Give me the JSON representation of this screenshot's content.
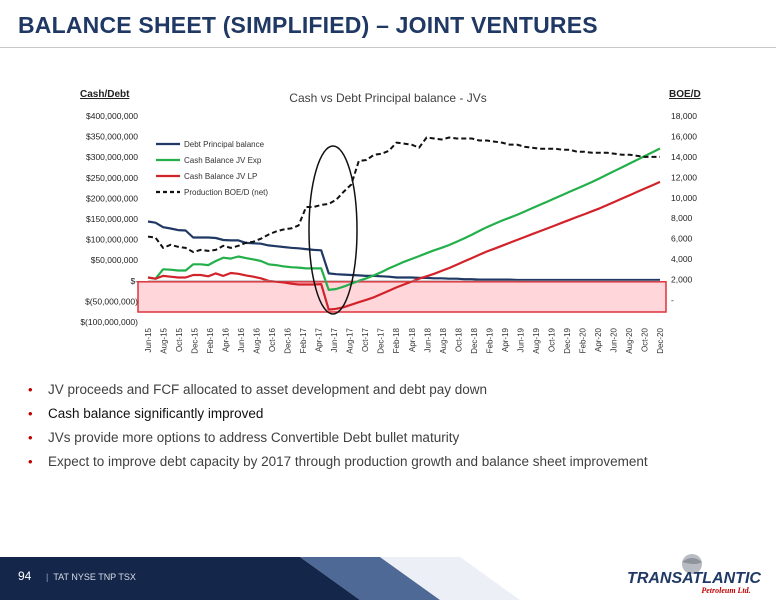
{
  "header": {
    "title": "BALANCE SHEET (SIMPLIFIED) – JOINT VENTURES"
  },
  "chart_data": {
    "type": "line",
    "title": "Cash vs Debt Principal balance - JVs",
    "ylabel": "Cash/Debt",
    "y2label": "BOE/D",
    "ylim": [
      -100000000,
      400000000
    ],
    "y2lim": [
      0,
      18000
    ],
    "y_ticks": [
      "$400,000,000",
      "$350,000,000",
      "$300,000,000",
      "$250,000,000",
      "$200,000,000",
      "$150,000,000",
      "$100,000,000",
      "$50,000,000",
      "$-",
      "$(50,000,000)",
      "$(100,000,000)"
    ],
    "y2_ticks": [
      "18,000",
      "16,000",
      "14,000",
      "12,000",
      "10,000",
      "8,000",
      "6,000",
      "4,000",
      "2,000",
      "-"
    ],
    "x_labels": [
      "Jun-15",
      "Aug-15",
      "Oct-15",
      "Dec-15",
      "Feb-16",
      "Apr-16",
      "Jun-16",
      "Aug-16",
      "Oct-16",
      "Dec-16",
      "Feb-17",
      "Apr-17",
      "Jun-17",
      "Aug-17",
      "Oct-17",
      "Dec-17",
      "Feb-18",
      "Apr-18",
      "Jun-18",
      "Aug-18",
      "Oct-18",
      "Dec-18",
      "Feb-19",
      "Apr-19",
      "Jun-19",
      "Aug-19",
      "Oct-19",
      "Dec-19",
      "Feb-20",
      "Apr-20",
      "Jun-20",
      "Aug-20",
      "Oct-20",
      "Dec-20"
    ],
    "grid": false,
    "legend_position": "top-left",
    "series": [
      {
        "name": "Debt Principal balance",
        "axis": "left",
        "color": "#1f3864",
        "style": "solid",
        "values": [
          144,
          141,
          130,
          127,
          123,
          122,
          105,
          105,
          105,
          104,
          99,
          98,
          98,
          92,
          91,
          90,
          86,
          84,
          82,
          80,
          79,
          77,
          75,
          74,
          18,
          16,
          15,
          14,
          13,
          12,
          12,
          11,
          10,
          8,
          8,
          8,
          7,
          7,
          6,
          6,
          5,
          5,
          4,
          4,
          3,
          3,
          3,
          3,
          3,
          2,
          2,
          2,
          2,
          2,
          2,
          2,
          2,
          2,
          2,
          2,
          2,
          2,
          2,
          2,
          2,
          2,
          2,
          2,
          2
        ],
        "scale": 1000000
      },
      {
        "name": "Cash Balance JV Exp",
        "axis": "left",
        "color": "#23b04b",
        "style": "solid",
        "values": [
          8,
          5,
          28,
          27,
          25,
          25,
          40,
          40,
          38,
          48,
          56,
          54,
          59,
          55,
          52,
          48,
          40,
          38,
          35,
          33,
          32,
          30,
          30,
          30,
          -22,
          -20,
          -14,
          -7,
          0,
          6,
          13,
          21,
          30,
          38,
          46,
          53,
          60,
          67,
          74,
          80,
          87,
          95,
          103,
          112,
          121,
          130,
          138,
          146,
          153,
          160,
          168,
          176,
          184,
          192,
          200,
          208,
          216,
          224,
          232,
          240,
          249,
          258,
          267,
          276,
          285,
          294,
          303,
          312,
          321
        ],
        "scale": 1000000
      },
      {
        "name": "Cash Balance JV LP",
        "axis": "left",
        "color": "#d2232a",
        "style": "solid",
        "values": [
          8,
          5,
          12,
          10,
          8,
          8,
          14,
          14,
          11,
          18,
          12,
          19,
          17,
          13,
          10,
          6,
          0,
          -2,
          -4,
          -7,
          -9,
          -9,
          -9,
          -8,
          -70,
          -68,
          -64,
          -58,
          -52,
          -46,
          -40,
          -32,
          -24,
          -16,
          -9,
          -2,
          5,
          11,
          17,
          24,
          31,
          39,
          47,
          55,
          63,
          71,
          78,
          85,
          92,
          99,
          106,
          113,
          120,
          127,
          134,
          141,
          148,
          155,
          162,
          169,
          176,
          184,
          192,
          200,
          208,
          216,
          224,
          232,
          240
        ],
        "scale": 1000000
      },
      {
        "name": "Production BOE/D (net)",
        "axis": "right",
        "color": "#111111",
        "style": "dashed",
        "values": [
          6200,
          6100,
          5100,
          5400,
          5200,
          5100,
          4700,
          4900,
          4800,
          4900,
          5300,
          5100,
          5300,
          5600,
          5700,
          6000,
          6400,
          6700,
          6900,
          7000,
          7300,
          9100,
          9100,
          9300,
          9400,
          9800,
          10600,
          11300,
          13600,
          13700,
          14200,
          14300,
          14600,
          15400,
          15300,
          15200,
          14900,
          15900,
          15800,
          15700,
          15900,
          15800,
          15800,
          15800,
          15600,
          15600,
          15500,
          15400,
          15200,
          15200,
          15000,
          14900,
          14800,
          14800,
          14800,
          14700,
          14700,
          14500,
          14500,
          14400,
          14400,
          14400,
          14300,
          14200,
          14200,
          14100,
          14000,
          14000,
          14000
        ]
      }
    ],
    "annotations": {
      "highlight_band": [
        -100000000,
        0
      ],
      "ellipse_around": "Jun-17"
    }
  },
  "bullets": [
    "JV proceeds and FCF allocated to asset development and debt pay down",
    "Cash balance significantly improved",
    "JVs provide more options to address Convertible Debt bullet maturity",
    "Expect to improve debt capacity by 2017 through production growth and balance sheet improvement"
  ],
  "footer": {
    "page_number": "94",
    "tickers": "TAT NYSE  TNP TSX"
  },
  "logo": {
    "line1": "TRANSATLANTIC",
    "line2": "Petroleum Ltd."
  },
  "colors": {
    "title": "#1f3864",
    "footer_dark": "#14274a",
    "footer_accent": "#2f4f82",
    "band_fill": "#ffd7db",
    "band_stroke": "#e0303a",
    "bullet": "#c00000"
  }
}
